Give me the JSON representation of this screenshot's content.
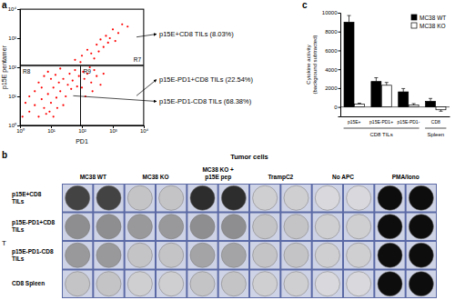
{
  "chart_data": [
    {
      "type": "scatter",
      "panel": "a",
      "xlabel": "PD1",
      "ylabel": "p15E pentamer",
      "log": true,
      "color": "#ff0000",
      "x": [
        2,
        3,
        4,
        5,
        6,
        8,
        10,
        12,
        15,
        18,
        20,
        25,
        30,
        35,
        40,
        45,
        50,
        60,
        70,
        80,
        3,
        4,
        6,
        8,
        5,
        10,
        14,
        20,
        2,
        1.5,
        1.2,
        7,
        9,
        25,
        16,
        12,
        100,
        120,
        150,
        130,
        200,
        250,
        300,
        180,
        400,
        110,
        220,
        500,
        60,
        100,
        150,
        200,
        300,
        400,
        500,
        600,
        800,
        1000,
        1500,
        2000,
        250,
        350,
        700,
        1200,
        90,
        3000
      ],
      "values": [
        3,
        5,
        2,
        8,
        4,
        12,
        6,
        20,
        9,
        30,
        15,
        40,
        10,
        25,
        60,
        18,
        35,
        80,
        22,
        50,
        15,
        30,
        50,
        70,
        20,
        40,
        55,
        90,
        10,
        6,
        2,
        2.5,
        3,
        5,
        4,
        2,
        20,
        40,
        60,
        10,
        30,
        80,
        50,
        100,
        25,
        70,
        15,
        60,
        180,
        250,
        400,
        300,
        600,
        900,
        500,
        1200,
        1000,
        2000,
        1500,
        3000,
        200,
        350,
        700,
        800,
        150,
        2500
      ],
      "xlim": [
        1,
        10000
      ],
      "ylim": [
        1,
        10000
      ],
      "xticks": [
        {
          "value": 1,
          "label": "10⁰"
        },
        {
          "value": 10,
          "label": "10¹"
        },
        {
          "value": 100,
          "label": "10²"
        },
        {
          "value": 1000,
          "label": "10³"
        },
        {
          "value": 10000,
          "label": "10⁴"
        }
      ],
      "yticks": [
        {
          "value": 1,
          "label": "10⁰"
        },
        {
          "value": 10,
          "label": "10¹"
        },
        {
          "value": 100,
          "label": "10²"
        },
        {
          "value": 1000,
          "label": "10³"
        },
        {
          "value": 10000,
          "label": "10⁴"
        }
      ],
      "gates": [
        {
          "label": "R7",
          "x": [
            1,
            10000
          ],
          "y": [
            120,
            10000
          ]
        },
        {
          "label": "R8",
          "x": [
            1,
            90
          ],
          "y": [
            1,
            110
          ]
        },
        {
          "label": "R9",
          "x": [
            90,
            10000
          ],
          "y": [
            1,
            110
          ]
        }
      ],
      "annotations": [
        {
          "text": "p15E+CD8 TILs (8.03%)",
          "gate": "R7"
        },
        {
          "text": "p15E-PD1+CD8 TILs (22.54%)",
          "gate": "R9"
        },
        {
          "text": "p15E-PD1-CD8 TILs (68.38%)",
          "gate": "R8"
        }
      ]
    },
    {
      "type": "bar",
      "panel": "c",
      "ylabel": [
        "Cytokine activity",
        "(background subtracted)"
      ],
      "categories": [
        "p15E+",
        "p15E-PD1+",
        "p15E-PD1-",
        "CD8"
      ],
      "groups": [
        {
          "label": "CD8 TILs",
          "span": 3
        },
        {
          "label": "Spleen",
          "span": 1
        }
      ],
      "series": [
        {
          "name": "MC38 WT",
          "color": "#000000",
          "values": [
            9000,
            2700,
            1600,
            600
          ],
          "errors": [
            700,
            400,
            350,
            300
          ]
        },
        {
          "name": "MC38 KO",
          "color": "#ffffff",
          "values": [
            300,
            2300,
            200,
            -300
          ],
          "errors": [
            100,
            300,
            150,
            150
          ]
        }
      ],
      "ylim": [
        -1000,
        10000
      ],
      "yticks": [
        0,
        2000,
        4000,
        6000,
        8000,
        10000
      ],
      "legend": "top-right"
    }
  ],
  "elispot": {
    "panel": "b",
    "header": "Tumor cells",
    "side_label": "T",
    "columns": [
      [
        "MC38 WT"
      ],
      [
        "MC38 KO"
      ],
      [
        "MC38 KO +",
        "p15E pep"
      ],
      [
        "TrampC2"
      ],
      [
        "No APC"
      ],
      [
        "PMA/Iono"
      ]
    ],
    "rows": [
      [
        "p15E+CD8",
        "TILs"
      ],
      [
        "p15E-PD1+CD8",
        "TILs"
      ],
      [
        "p15E-PD1-CD8",
        "TILs"
      ],
      [
        "CD8 Spleen"
      ]
    ],
    "well_intensity": [
      [
        0.75,
        0.15,
        0.85,
        0.1,
        0.05,
        1
      ],
      [
        0.4,
        0.35,
        0.4,
        0.15,
        0.1,
        1
      ],
      [
        0.35,
        0.15,
        0.3,
        0.15,
        0.1,
        1
      ],
      [
        0.15,
        0.1,
        0.15,
        0.1,
        0.05,
        1
      ]
    ]
  }
}
